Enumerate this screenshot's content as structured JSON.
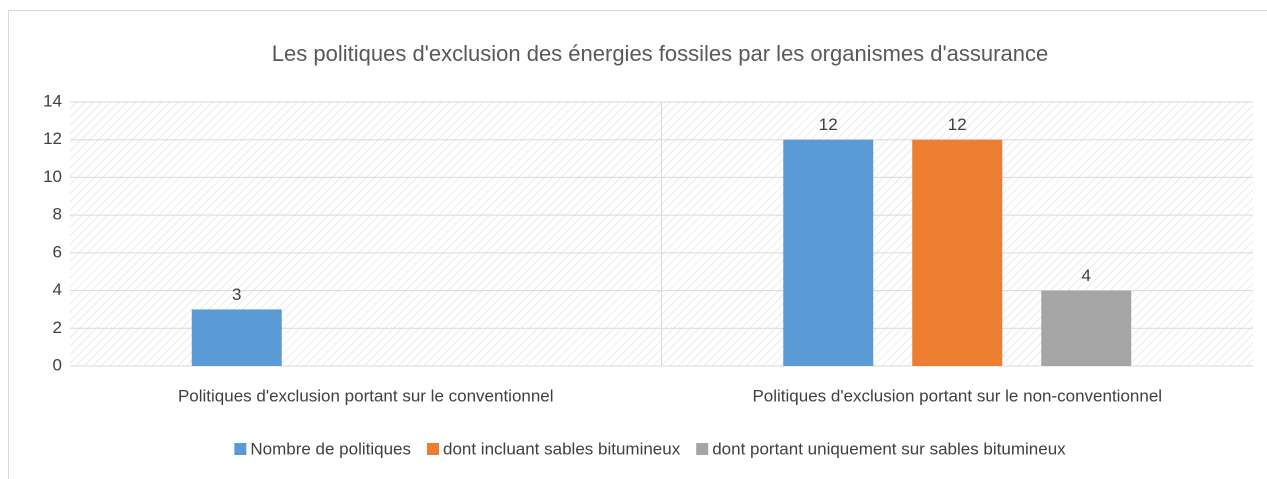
{
  "chart_data": {
    "type": "bar",
    "title": "Les politiques d'exclusion des énergies fossiles par les organismes d'assurance",
    "categories": [
      "Politiques d'exclusion portant sur le conventionnel",
      "Politiques d'exclusion portant sur le non-conventionnel"
    ],
    "series": [
      {
        "name": "Nombre de politiques",
        "color": "#5b9bd5",
        "values": [
          3,
          12
        ]
      },
      {
        "name": "dont incluant sables bitumineux",
        "color": "#ed7d31",
        "values": [
          null,
          12
        ]
      },
      {
        "name": "dont portant uniquement sur sables bitumineux",
        "color": "#a5a5a5",
        "values": [
          null,
          4
        ]
      }
    ],
    "ylim": [
      0,
      14
    ],
    "yticks": [
      0,
      2,
      4,
      6,
      8,
      10,
      12,
      14
    ],
    "grid": true,
    "legend": "bottom"
  }
}
